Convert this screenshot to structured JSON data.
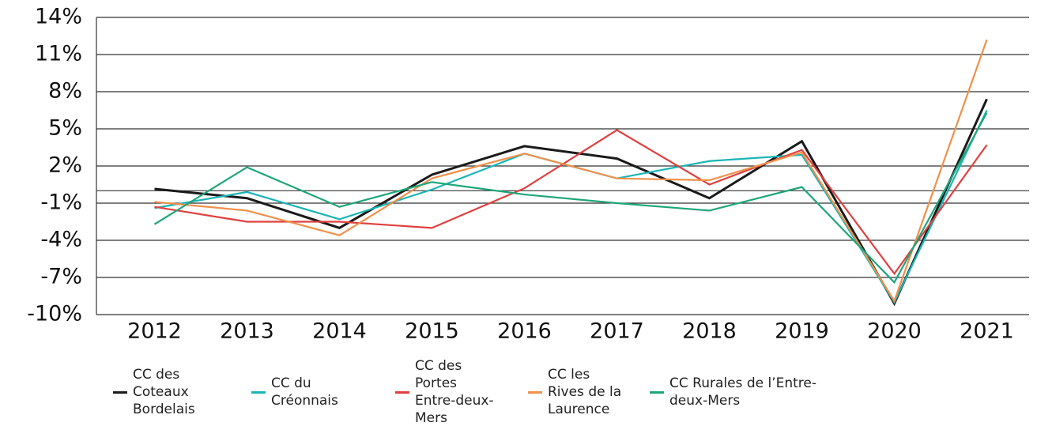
{
  "chart_data": {
    "type": "line",
    "categories": [
      "2012",
      "2013",
      "2014",
      "2015",
      "2016",
      "2017",
      "2018",
      "2019",
      "2020",
      "2021"
    ],
    "series": [
      {
        "name": "CC des Coteaux Bordelais",
        "color": "#1a1a1a",
        "values": [
          0.15,
          -0.6,
          -3.0,
          1.3,
          3.6,
          2.6,
          -0.6,
          4.0,
          -9.1,
          7.4
        ]
      },
      {
        "name": "CC du Créonnais",
        "color": "#1bb5b5",
        "values": [
          -1.4,
          -0.1,
          -2.3,
          0.1,
          3.0,
          1.0,
          2.4,
          2.9,
          -9.0,
          6.5
        ]
      },
      {
        "name": "CC des Portes Entre-deux-Mers",
        "color": "#e04040",
        "values": [
          -1.3,
          -2.5,
          -2.5,
          -3.0,
          0.2,
          4.9,
          0.5,
          3.3,
          -6.7,
          3.7
        ]
      },
      {
        "name": "CC les Rives de la Laurence",
        "color": "#f0904a",
        "values": [
          -0.9,
          -1.6,
          -3.6,
          1.0,
          3.0,
          1.0,
          0.85,
          3.1,
          -8.9,
          12.2
        ]
      },
      {
        "name": "CC Rurales de l’Entre-deux-Mers",
        "color": "#1fa67a",
        "values": [
          -2.7,
          1.9,
          -1.3,
          0.7,
          -0.3,
          -1.0,
          -1.6,
          0.3,
          -7.4,
          6.3
        ]
      }
    ],
    "ylim": [
      -10,
      14
    ],
    "yticks": [
      {
        "value": -10,
        "label": "-10%"
      },
      {
        "value": -7,
        "label": "-7%"
      },
      {
        "value": -4,
        "label": "-4%"
      },
      {
        "value": -1,
        "label": "-1%"
      },
      {
        "value": 2,
        "label": "2%"
      },
      {
        "value": 5,
        "label": "5%"
      },
      {
        "value": 8,
        "label": "8%"
      },
      {
        "value": 11,
        "label": "11%"
      },
      {
        "value": 14,
        "label": "14%"
      }
    ],
    "grid": true
  }
}
